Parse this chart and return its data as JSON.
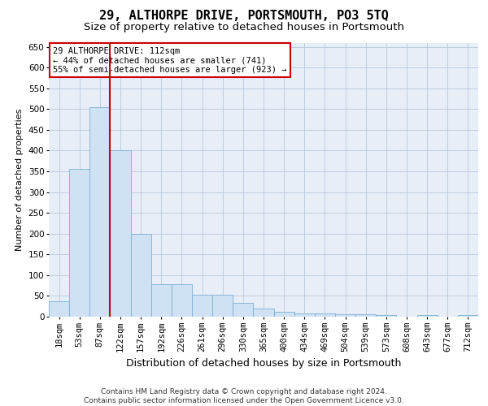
{
  "title": "29, ALTHORPE DRIVE, PORTSMOUTH, PO3 5TQ",
  "subtitle": "Size of property relative to detached houses in Portsmouth",
  "xlabel": "Distribution of detached houses by size in Portsmouth",
  "ylabel": "Number of detached properties",
  "bar_color": "#cfe2f3",
  "bar_edge_color": "#7bafd4",
  "background_color": "#ffffff",
  "plot_bg_color": "#e8eef8",
  "grid_color": "#b8c8dc",
  "vline_color": "#cc0000",
  "vline_x": 2.5,
  "annotation_text": "29 ALTHORPE DRIVE: 112sqm\n← 44% of detached houses are smaller (741)\n55% of semi-detached houses are larger (923) →",
  "annotation_box_color": "#ffffff",
  "annotation_box_edge_color": "#cc0000",
  "categories": [
    "18sqm",
    "53sqm",
    "87sqm",
    "122sqm",
    "157sqm",
    "192sqm",
    "226sqm",
    "261sqm",
    "296sqm",
    "330sqm",
    "365sqm",
    "400sqm",
    "434sqm",
    "469sqm",
    "504sqm",
    "539sqm",
    "573sqm",
    "608sqm",
    "643sqm",
    "677sqm",
    "712sqm"
  ],
  "values": [
    38,
    355,
    505,
    400,
    200,
    78,
    78,
    52,
    52,
    33,
    20,
    11,
    8,
    8,
    5,
    5,
    3,
    0,
    3,
    0,
    3
  ],
  "ylim": [
    0,
    660
  ],
  "yticks": [
    0,
    50,
    100,
    150,
    200,
    250,
    300,
    350,
    400,
    450,
    500,
    550,
    600,
    650
  ],
  "footer": "Contains HM Land Registry data © Crown copyright and database right 2024.\nContains public sector information licensed under the Open Government Licence v3.0.",
  "title_fontsize": 11,
  "subtitle_fontsize": 9.5,
  "xlabel_fontsize": 9,
  "ylabel_fontsize": 8,
  "tick_fontsize": 7.5,
  "annotation_fontsize": 7.5,
  "footer_fontsize": 6.5
}
